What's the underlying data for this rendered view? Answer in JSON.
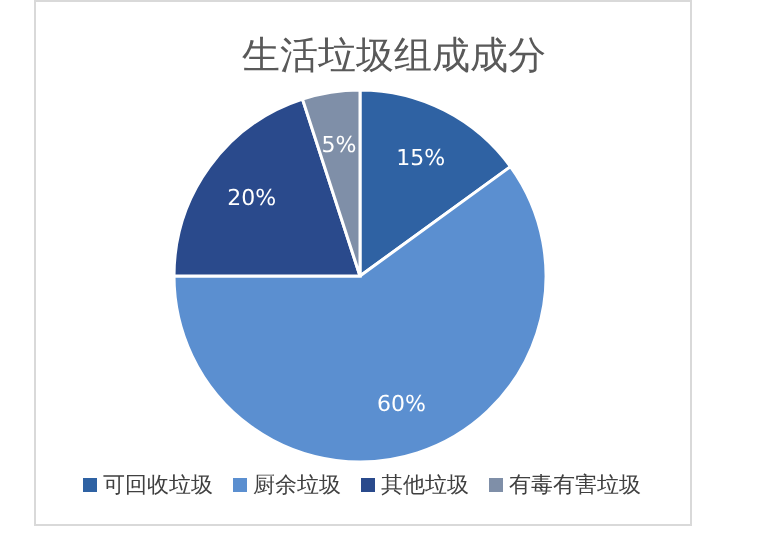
{
  "chart_data": {
    "type": "pie",
    "title": "生活垃圾组成成分",
    "categories": [
      "可回收垃圾",
      "厨余垃圾",
      "其他垃圾",
      "有毒有害垃圾"
    ],
    "values": [
      15,
      60,
      20,
      5
    ],
    "value_labels": [
      "15%",
      "60%",
      "20%",
      "5%"
    ],
    "colors": [
      "#2f62a3",
      "#5b8fd0",
      "#2a4a8c",
      "#7f8fa8"
    ],
    "legend": "bottom"
  }
}
